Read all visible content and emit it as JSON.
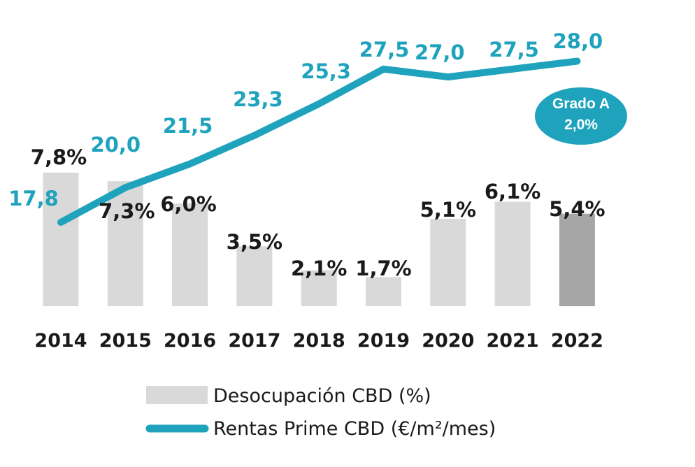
{
  "chart_data": {
    "type": "bar",
    "categories": [
      "2014",
      "2015",
      "2016",
      "2017",
      "2018",
      "2019",
      "2020",
      "2021",
      "2022"
    ],
    "series": [
      {
        "name": "Desocupación CBD (%)",
        "kind": "bar",
        "values": [
          7.8,
          7.3,
          6.0,
          3.5,
          2.1,
          1.7,
          5.1,
          6.1,
          5.4
        ],
        "labels": [
          "7,8%",
          "7,3%",
          "6,0%",
          "3,5%",
          "2,1%",
          "1,7%",
          "5,1%",
          "6,1%",
          "5,4%"
        ],
        "color": "#d9d9d9",
        "highlight_color": "#a6a6a6",
        "highlight_index": 8
      },
      {
        "name": "Rentas Prime CBD (€/m²/mes)",
        "kind": "line",
        "values": [
          17.8,
          20.0,
          21.5,
          23.3,
          25.3,
          27.5,
          27.0,
          27.5,
          28.0
        ],
        "labels": [
          "17,8",
          "20,0",
          "21,5",
          "23,3",
          "25,3",
          "27,5",
          "27,0",
          "27,5",
          "28,0"
        ],
        "color": "#1fa3bd"
      }
    ],
    "annotations": [
      {
        "text_lines": [
          "Grado A",
          "2,0%"
        ],
        "color": "#1fa3bd",
        "attached_to": "2022"
      }
    ],
    "legend": {
      "placement": "bottom",
      "entries": [
        "Desocupación CBD (%)",
        "Rentas Prime CBD (€/m²/mes)"
      ]
    },
    "grid": false
  }
}
